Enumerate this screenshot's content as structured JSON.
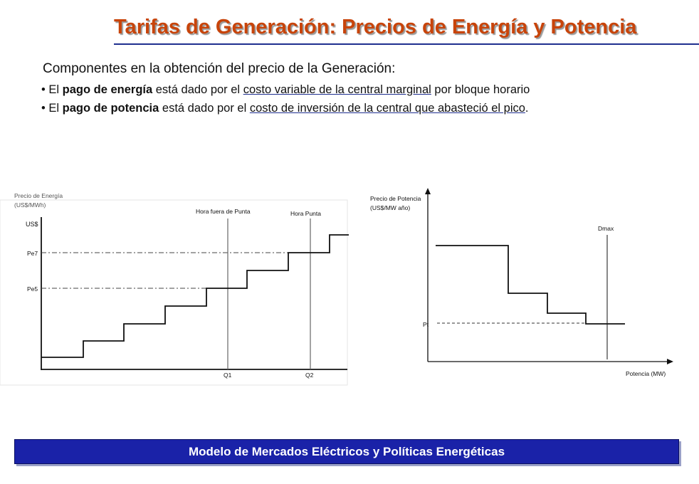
{
  "title": "Tarifas de Generación: Precios de Energía y Potencia",
  "intro": "Componentes en la obtención del precio de la Generación:",
  "bullets": {
    "b1": {
      "marker": "•",
      "t1": "El ",
      "bold": "pago de energía",
      "t2": " está dado por el ",
      "underline": "costo variable de la central marginal",
      "t3": " por bloque horario"
    },
    "b2": {
      "marker": "•",
      "t1": "El ",
      "bold": "pago de potencia",
      "t2": " está dado por el ",
      "underline": "costo de inversión de la central que abasteció el pico",
      "t3": "."
    }
  },
  "energy_chart": {
    "caption_line1": "Precio de Energía",
    "caption_line2": "(US$/MWh)",
    "y_unit": "US$",
    "pe7": "Pe7",
    "pe5": "Pe5",
    "q1": "Q1",
    "q2": "Q2",
    "off_peak": "Hora fuera de Punta",
    "peak": "Hora Punta"
  },
  "capacity_chart": {
    "ylabel_line1": "Precio de Potencia",
    "ylabel_line2": "(US$/MW año)",
    "dmax": "Dmax",
    "pt": "Pt",
    "xlabel": "Potencia (MW)"
  },
  "footer": "Modelo de Mercados Eléctricos y Políticas Energéticas",
  "colors": {
    "title": "#c8440a",
    "footer_bg": "#1a22a8",
    "rule": "#1f2f8f"
  }
}
